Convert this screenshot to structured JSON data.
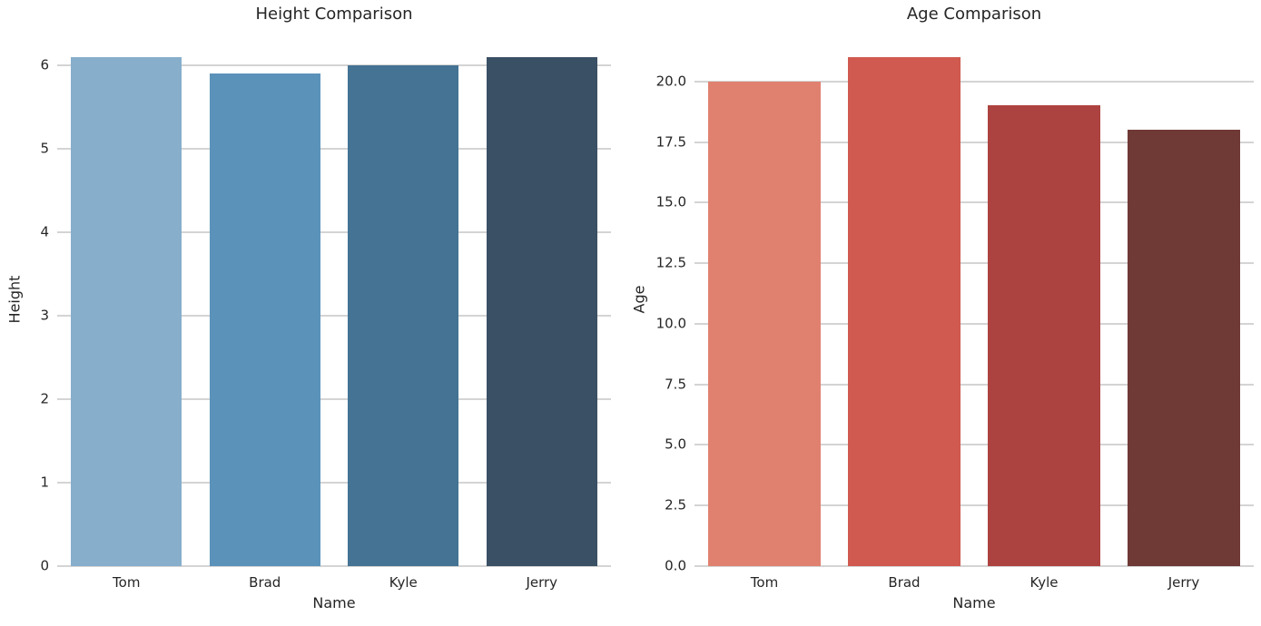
{
  "colors": {
    "background": "#ffffff",
    "grid": "#d4d4d4",
    "text": "#262626"
  },
  "chart_data": [
    {
      "type": "bar",
      "title": "Height Comparison",
      "xlabel": "Name",
      "ylabel": "Height",
      "categories": [
        "Tom",
        "Brad",
        "Kyle",
        "Jerry"
      ],
      "values": [
        6.1,
        5.9,
        6.0,
        6.1
      ],
      "bar_colors": [
        "#87AECB",
        "#5B92BA",
        "#447394",
        "#3A5064"
      ],
      "yticks": [
        0,
        1,
        2,
        3,
        4,
        5,
        6
      ],
      "ytick_labels": [
        "0",
        "1",
        "2",
        "3",
        "4",
        "5",
        "6"
      ],
      "ylim": [
        0,
        6.405
      ],
      "bar_width_fraction": 0.8,
      "grid": true,
      "legend": "none"
    },
    {
      "type": "bar",
      "title": "Age Comparison",
      "xlabel": "Name",
      "ylabel": "Age",
      "categories": [
        "Tom",
        "Brad",
        "Kyle",
        "Jerry"
      ],
      "values": [
        20,
        21,
        19,
        18
      ],
      "bar_colors": [
        "#E08170",
        "#D05950",
        "#AD4340",
        "#6F3936"
      ],
      "yticks": [
        0,
        2.5,
        5,
        7.5,
        10,
        12.5,
        15,
        17.5,
        20
      ],
      "ytick_labels": [
        "0.0",
        "2.5",
        "5.0",
        "7.5",
        "10.0",
        "12.5",
        "15.0",
        "17.5",
        "20.0"
      ],
      "ylim": [
        0,
        22.05
      ],
      "bar_width_fraction": 0.8,
      "grid": true,
      "legend": "none"
    }
  ]
}
